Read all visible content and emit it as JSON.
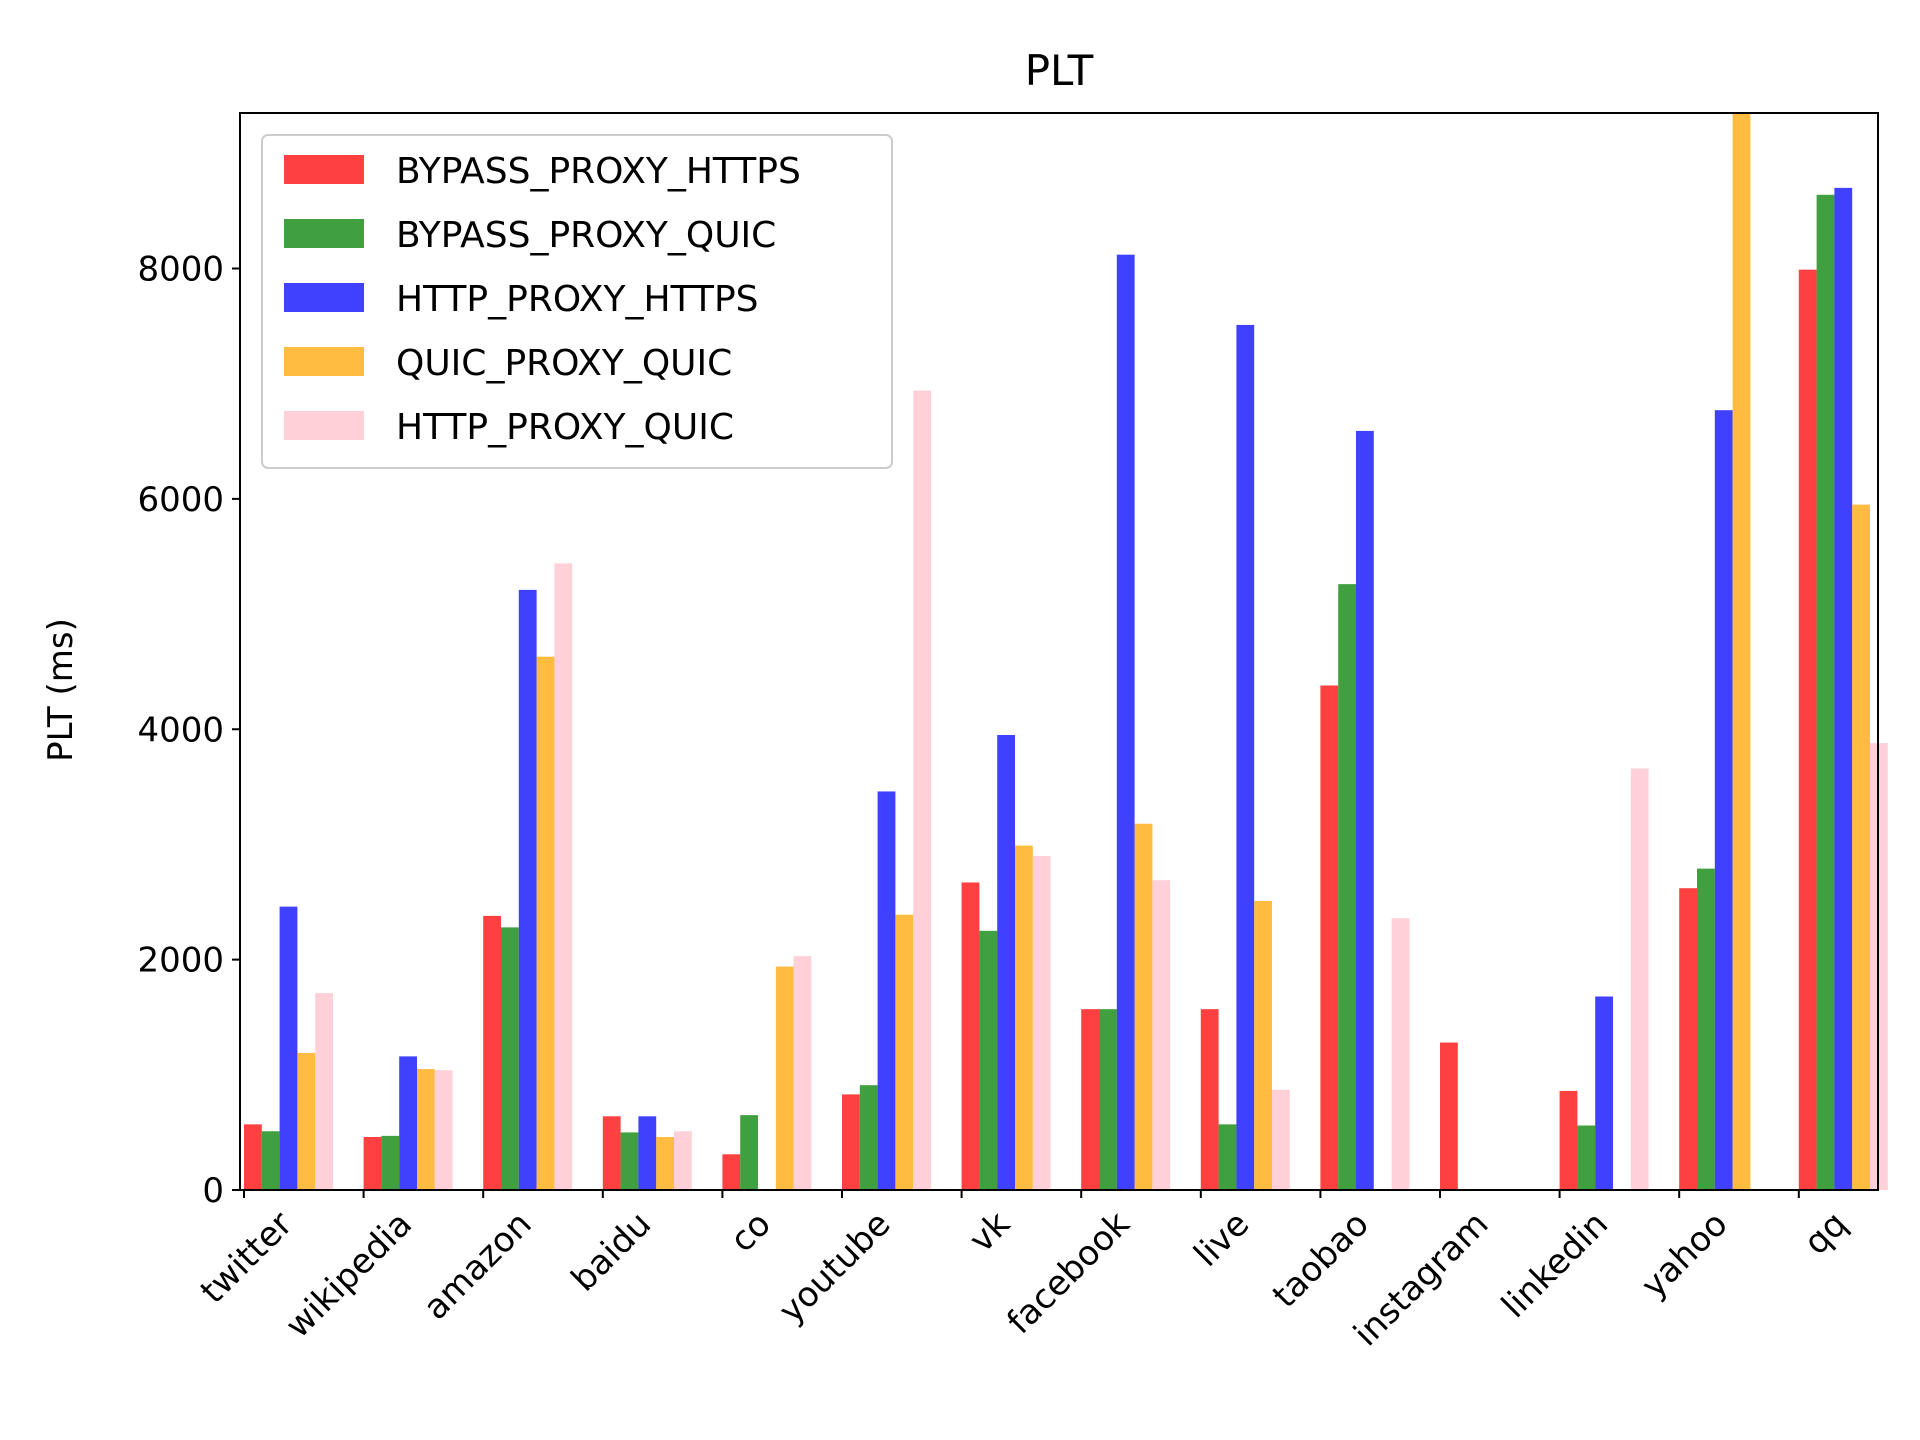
{
  "chart_data": {
    "type": "bar",
    "title": "PLT",
    "xlabel": "",
    "ylabel": "PLT (ms)",
    "ylim": [
      0,
      9350
    ],
    "yticks": [
      0,
      2000,
      4000,
      6000,
      8000
    ],
    "ytick_labels": [
      "0",
      "2000",
      "4000",
      "6000",
      "8000"
    ],
    "categories": [
      "twitter",
      "wikipedia",
      "amazon",
      "baidu",
      "co",
      "youtube",
      "vk",
      "facebook",
      "live",
      "taobao",
      "instagram",
      "linkedin",
      "yahoo",
      "qq"
    ],
    "legend_position": "top-left",
    "grid": false,
    "series": [
      {
        "name": "BYPASS_PROXY_HTTPS",
        "color": "#ff0000",
        "values": [
          570,
          460,
          2380,
          640,
          310,
          830,
          2670,
          1570,
          1570,
          4380,
          1280,
          860,
          2620,
          7990
        ]
      },
      {
        "name": "BYPASS_PROXY_QUIC",
        "color": "#008000",
        "values": [
          510,
          470,
          2280,
          500,
          650,
          910,
          2250,
          1570,
          570,
          5260,
          0,
          560,
          2790,
          8640
        ]
      },
      {
        "name": "HTTP_PROXY_HTTPS",
        "color": "#0000ff",
        "values": [
          2460,
          1160,
          5210,
          640,
          0,
          3460,
          3950,
          8120,
          7510,
          6590,
          0,
          1680,
          6770,
          8700
        ]
      },
      {
        "name": "QUIC_PROXY_QUIC",
        "color": "#ffa500",
        "values": [
          1190,
          1050,
          4630,
          460,
          1940,
          2390,
          2990,
          3180,
          2510,
          0,
          0,
          0,
          9350,
          5950
        ]
      },
      {
        "name": "HTTP_PROXY_QUIC",
        "color": "#ffc0cb",
        "values": [
          1710,
          1040,
          5440,
          510,
          2030,
          6940,
          2900,
          2690,
          870,
          2360,
          0,
          3660,
          0,
          3880
        ]
      }
    ]
  }
}
